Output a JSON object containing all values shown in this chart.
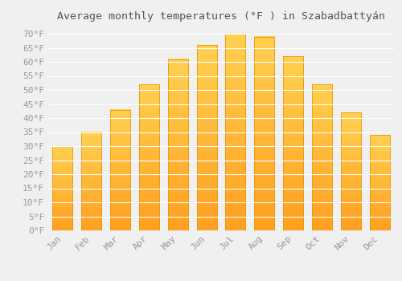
{
  "months": [
    "Jan",
    "Feb",
    "Mar",
    "Apr",
    "May",
    "Jun",
    "Jul",
    "Aug",
    "Sep",
    "Oct",
    "Nov",
    "Dec"
  ],
  "values": [
    30,
    35,
    43,
    52,
    61,
    66,
    70,
    69,
    62,
    52,
    42,
    34
  ],
  "bar_color_top": "#FFC020",
  "bar_color_bottom": "#FFB040",
  "bar_edge_color": "#E8960A",
  "background_color": "#f0f0f0",
  "grid_color": "#ffffff",
  "title": "Average monthly temperatures (°F ) in Szabadbattyán",
  "title_fontsize": 9.5,
  "tick_label_fontsize": 8,
  "ylim_min": 0,
  "ylim_max": 72,
  "ytick_min": 0,
  "ytick_max": 70,
  "ytick_step": 5
}
